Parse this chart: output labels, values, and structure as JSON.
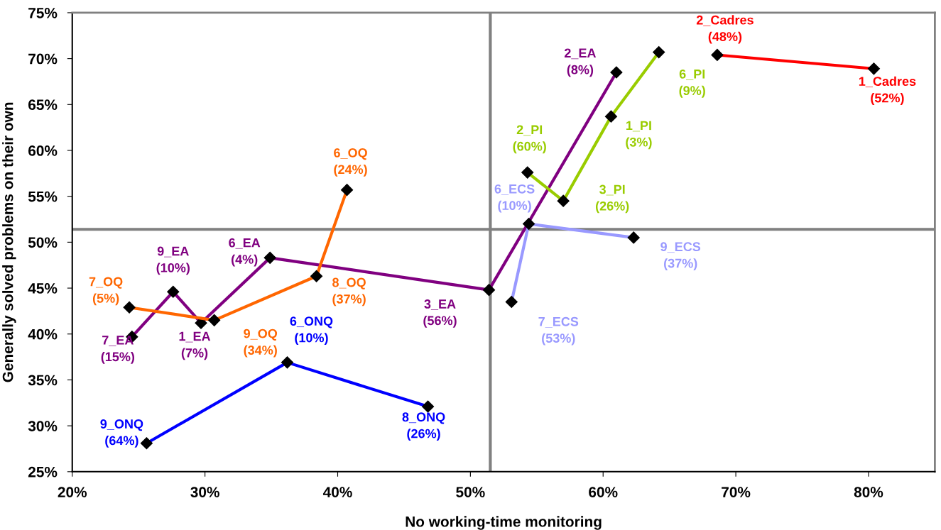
{
  "chart_data": {
    "type": "line",
    "xlabel": "No working-time monitoring",
    "ylabel": "Generally solved problems on their own",
    "xlim": [
      20,
      85
    ],
    "ylim": [
      25,
      75
    ],
    "xticks": [
      {
        "value": 20,
        "label": "20%"
      },
      {
        "value": 30,
        "label": "30%"
      },
      {
        "value": 40,
        "label": "40%"
      },
      {
        "value": 50,
        "label": "50%"
      },
      {
        "value": 60,
        "label": "60%"
      },
      {
        "value": 70,
        "label": "70%"
      },
      {
        "value": 80,
        "label": "80%"
      }
    ],
    "yticks": [
      {
        "value": 25,
        "label": "25%"
      },
      {
        "value": 30,
        "label": "30%"
      },
      {
        "value": 35,
        "label": "35%"
      },
      {
        "value": 40,
        "label": "40%"
      },
      {
        "value": 45,
        "label": "45%"
      },
      {
        "value": 50,
        "label": "50%"
      },
      {
        "value": 55,
        "label": "55%"
      },
      {
        "value": 60,
        "label": "60%"
      },
      {
        "value": 65,
        "label": "65%"
      },
      {
        "value": 70,
        "label": "70%"
      },
      {
        "value": 75,
        "label": "75%"
      }
    ],
    "grid": false,
    "legend": false,
    "marker": "diamond",
    "line_style": "solid",
    "ref_lines": [
      {
        "axis": "x",
        "value": 51.5,
        "color": "#808080"
      },
      {
        "axis": "y",
        "value": 51.4,
        "color": "#808080"
      }
    ],
    "series": [
      {
        "color": "#ff0000",
        "x": [
          68.6,
          80.4
        ],
        "values": [
          70.4,
          68.9
        ]
      },
      {
        "color": "#800080",
        "x": [
          24.5,
          27.6,
          29.7,
          34.9,
          51.4,
          61.0
        ],
        "values": [
          39.7,
          44.6,
          41.2,
          48.3,
          44.8,
          68.5
        ]
      },
      {
        "color": "#ff6600",
        "x": [
          24.3,
          30.7,
          38.4,
          40.7
        ],
        "values": [
          42.9,
          41.5,
          46.3,
          55.7
        ]
      },
      {
        "color": "#0000ff",
        "x": [
          25.6,
          36.2,
          46.8
        ],
        "values": [
          28.1,
          36.9,
          32.1
        ]
      },
      {
        "color": "#9999ff",
        "x": [
          53.1,
          54.4,
          62.3
        ],
        "values": [
          43.5,
          52.0,
          50.5
        ]
      },
      {
        "color": "#99cc00",
        "x": [
          54.3,
          57.0,
          60.6,
          64.2
        ],
        "values": [
          57.6,
          54.5,
          63.7,
          70.7
        ]
      }
    ],
    "annotations": [
      {
        "text": "2_Cadres\n(48%)",
        "x": 68.6,
        "y": 70.4
      },
      {
        "text": "1_Cadres\n(52%)",
        "x": 80.4,
        "y": 68.9
      },
      {
        "text": "7_EA\n(15%)",
        "x": 24.5,
        "y": 39.7
      },
      {
        "text": "9_EA\n(10%)",
        "x": 27.6,
        "y": 44.6
      },
      {
        "text": "1_EA\n(7%)",
        "x": 29.7,
        "y": 41.2
      },
      {
        "text": "6_EA\n(4%)",
        "x": 34.9,
        "y": 48.3
      },
      {
        "text": "3_EA\n(56%)",
        "x": 51.4,
        "y": 44.8
      },
      {
        "text": "2_EA\n(8%)",
        "x": 61.0,
        "y": 68.5
      },
      {
        "text": "7_OQ\n(5%)",
        "x": 24.3,
        "y": 42.9
      },
      {
        "text": "9_OQ\n(34%)",
        "x": 30.7,
        "y": 41.5
      },
      {
        "text": "8_OQ\n(37%)",
        "x": 38.4,
        "y": 46.3
      },
      {
        "text": "6_OQ\n(24%)",
        "x": 40.7,
        "y": 55.7
      },
      {
        "text": "9_ONQ\n(64%)",
        "x": 25.6,
        "y": 28.1
      },
      {
        "text": "6_ONQ\n(10%)",
        "x": 36.2,
        "y": 36.9
      },
      {
        "text": "8_ONQ\n(26%)",
        "x": 46.8,
        "y": 32.1
      },
      {
        "text": "7_ECS\n(53%)",
        "x": 53.1,
        "y": 43.5
      },
      {
        "text": "6_ECS\n(10%)",
        "x": 54.4,
        "y": 52.0
      },
      {
        "text": "9_ECS\n(37%)",
        "x": 62.3,
        "y": 50.5
      },
      {
        "text": "2_PI\n(60%)",
        "x": 54.3,
        "y": 57.6
      },
      {
        "text": "3_PI\n(26%)",
        "x": 57.0,
        "y": 54.5
      },
      {
        "text": "1_PI\n(3%)",
        "x": 60.6,
        "y": 63.7
      },
      {
        "text": "6_PI\n(9%)",
        "x": 64.2,
        "y": 70.7
      }
    ]
  }
}
